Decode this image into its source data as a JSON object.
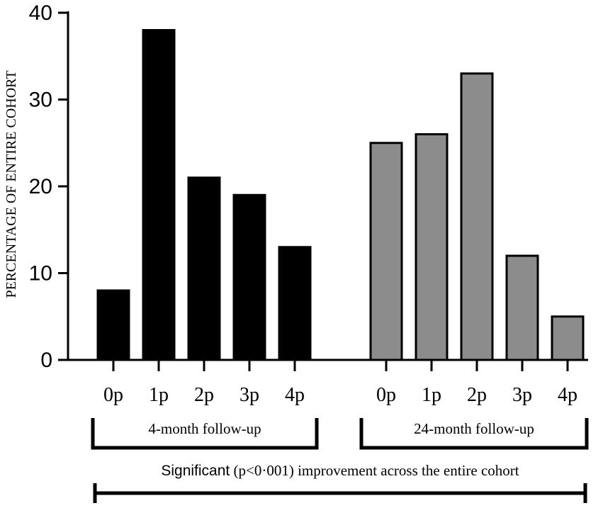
{
  "chart_data": {
    "type": "bar",
    "ylabel": "PERCENTAGE OF ENTIRE COHORT",
    "ylim": [
      0,
      40
    ],
    "yticks": [
      0,
      10,
      20,
      30,
      40
    ],
    "categories": [
      "0p",
      "1p",
      "2p",
      "3p",
      "4p"
    ],
    "series": [
      {
        "name": "4-month follow-up",
        "values": [
          8,
          38,
          21,
          19,
          13
        ],
        "color": "#000000"
      },
      {
        "name": "24-month follow-up",
        "values": [
          25,
          26,
          33,
          12,
          5
        ],
        "color": "#8c8c8c"
      }
    ],
    "bracket_text": {
      "bold": "Significant",
      "rest": " (p<0·001) improvement across the entire cohort"
    },
    "grid": false,
    "legend": "none"
  }
}
